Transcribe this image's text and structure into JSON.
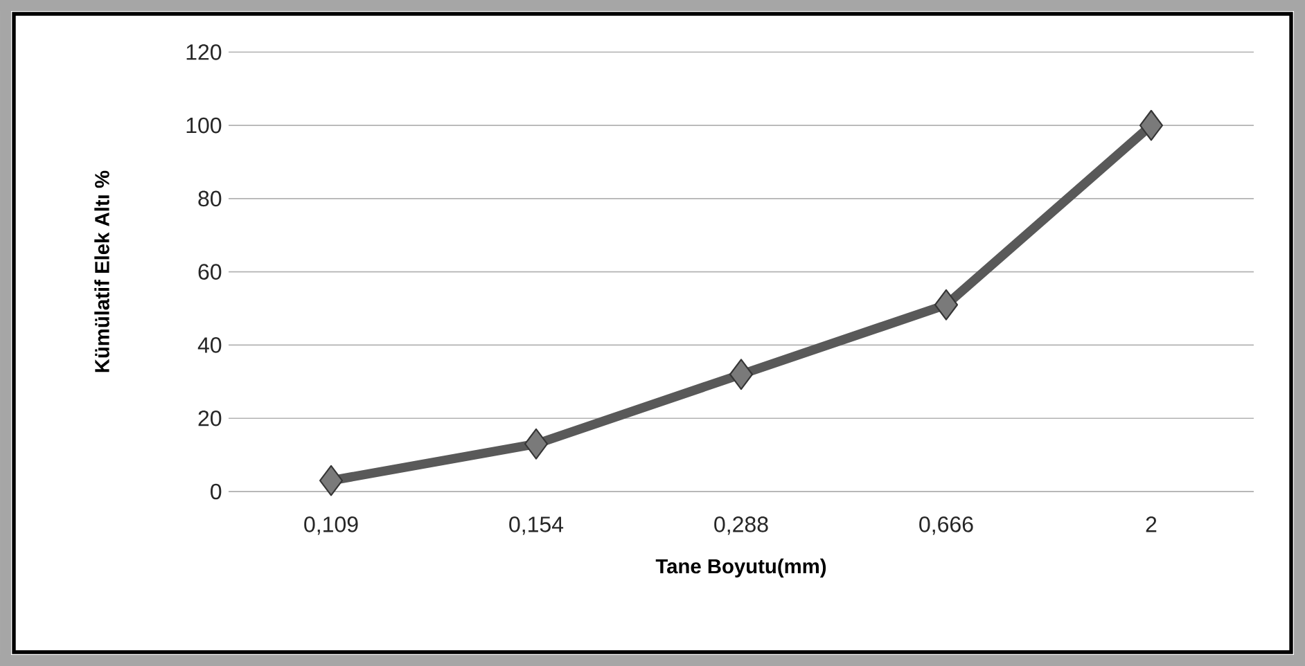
{
  "chart_data": {
    "type": "line",
    "xlabel": "Tane Boyutu(mm)",
    "ylabel": "Kümülatif Elek Altı %",
    "categories": [
      "0,109",
      "0,154",
      "0,288",
      "0,666",
      "2"
    ],
    "series": [
      {
        "color": "#595959",
        "values": [
          3,
          13,
          32,
          51,
          100
        ]
      }
    ],
    "ylim": [
      0,
      120
    ],
    "yticks": [
      0,
      20,
      40,
      60,
      80,
      100,
      120
    ],
    "grid": "y",
    "marker": "diamond",
    "line_style": "solid"
  }
}
